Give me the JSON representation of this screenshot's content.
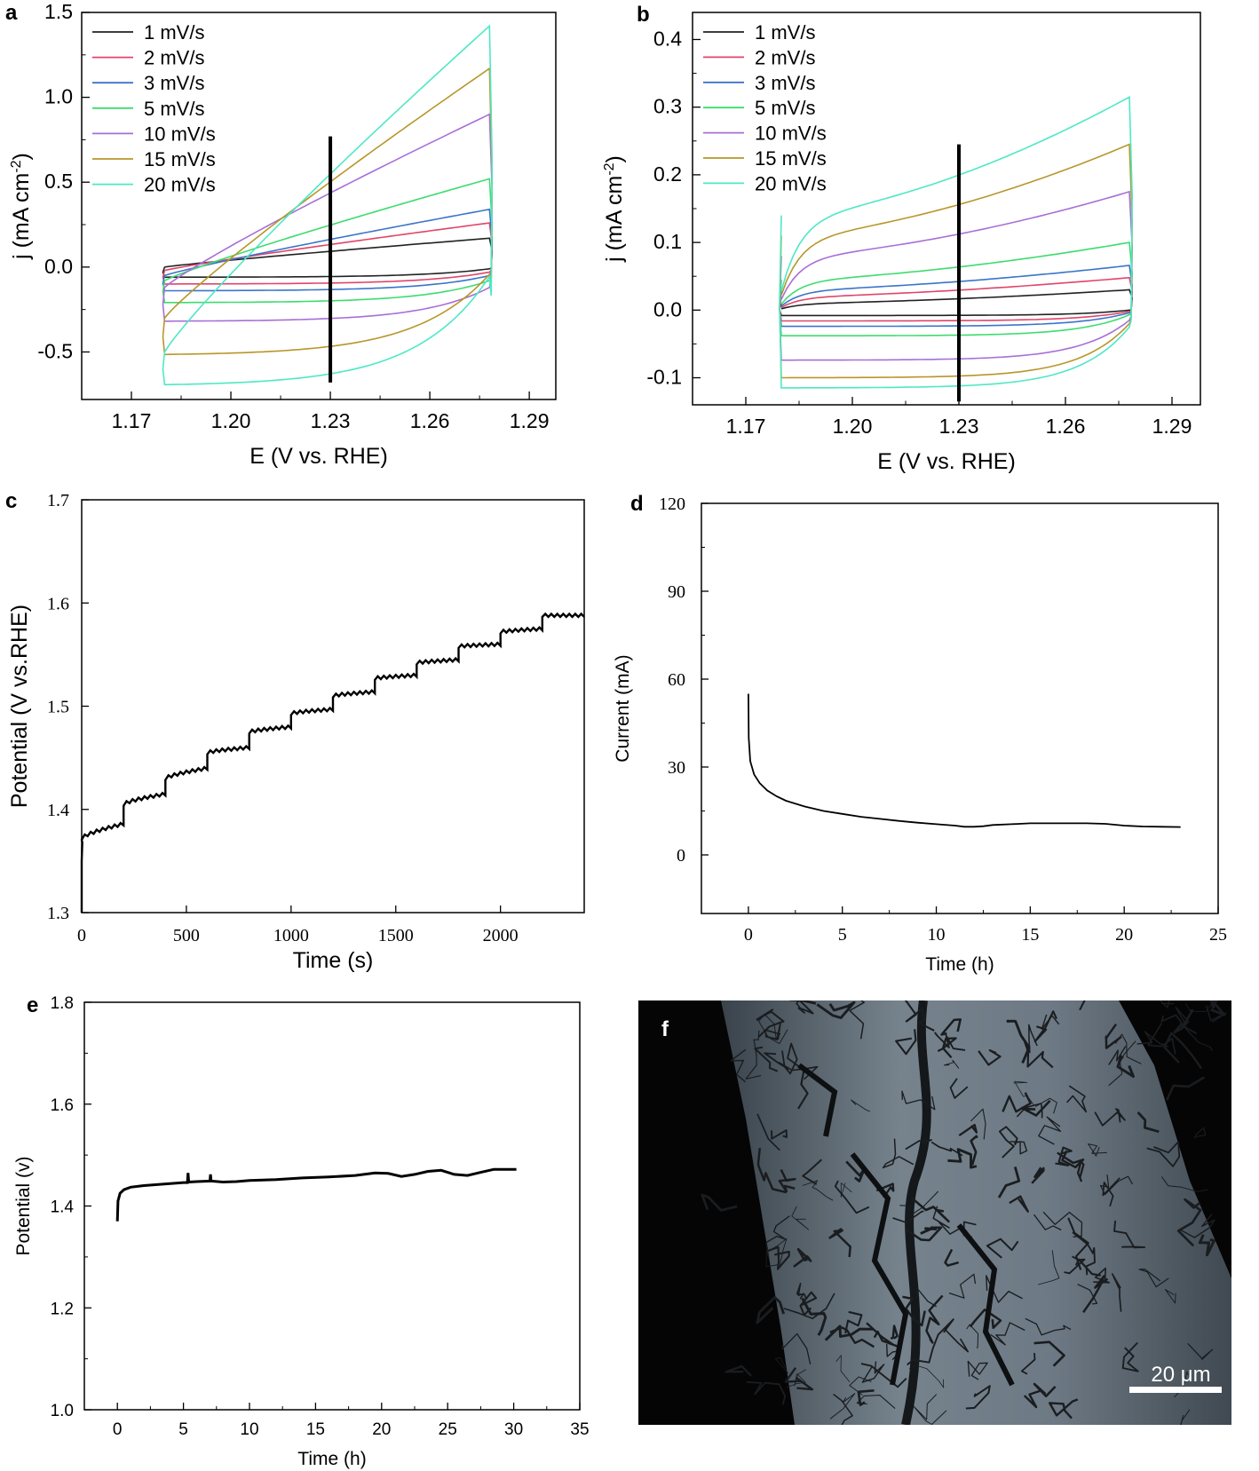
{
  "chart_data": [
    {
      "panel": "a",
      "type": "line",
      "xlabel": "E (V vs. RHE)",
      "ylabel_main": "j (mA cm",
      "ylabel_sup": "-2",
      "ylabel_end": ")",
      "xlim": [
        1.155,
        1.298
      ],
      "ylim": [
        -0.78,
        1.5
      ],
      "xticks": [
        1.17,
        1.2,
        1.23,
        1.26,
        1.29
      ],
      "xtick_labels": [
        "1.17",
        "1.20",
        "1.23",
        "1.26",
        "1.29"
      ],
      "yticks": [
        -0.5,
        0.0,
        0.5,
        1.0,
        1.5
      ],
      "ytick_labels": [
        "-0.5",
        "0.0",
        "0.5",
        "1.0",
        "1.5"
      ],
      "legend_position": "top-left",
      "marker_line": {
        "x": 1.23,
        "y": [
          -0.68,
          0.77
        ]
      },
      "series": [
        {
          "name": "1 mV/s",
          "color": "#222222",
          "top_start": 0.0,
          "top_end": 0.17,
          "bottom_start": -0.06,
          "bottom_end": -0.02,
          "peak": 0.22
        },
        {
          "name": "2 mV/s",
          "color": "#e0456a",
          "top_start": -0.02,
          "top_end": 0.26,
          "bottom_start": -0.1,
          "bottom_end": -0.06,
          "peak": 0.3
        },
        {
          "name": "3 mV/s",
          "color": "#3b74c9",
          "top_start": -0.05,
          "top_end": 0.34,
          "bottom_start": -0.14,
          "bottom_end": -0.1,
          "peak": 0.4
        },
        {
          "name": "5 mV/s",
          "color": "#3ddc6e",
          "top_start": -0.08,
          "top_end": 0.52,
          "bottom_start": -0.21,
          "bottom_end": -0.16,
          "peak": 0.56
        },
        {
          "name": "10 mV/s",
          "color": "#a86fd6",
          "top_start": -0.12,
          "top_end": 0.9,
          "bottom_start": -0.32,
          "bottom_end": -0.24,
          "peak": 0.93
        },
        {
          "name": "15 mV/s",
          "color": "#b8962a",
          "top_start": -0.3,
          "top_end": 1.17,
          "bottom_start": -0.52,
          "bottom_end": -0.42,
          "peak": 1.18
        },
        {
          "name": "20 mV/s",
          "color": "#4ee8c5",
          "top_start": -0.5,
          "top_end": 1.42,
          "bottom_start": -0.7,
          "bottom_end": -0.56,
          "peak": 1.42
        }
      ]
    },
    {
      "panel": "b",
      "type": "line",
      "xlabel": "E (V vs. RHE)",
      "ylabel_main": "j (mA cm",
      "ylabel_sup": "-2",
      "ylabel_end": ")",
      "xlim": [
        1.155,
        1.298
      ],
      "ylim": [
        -0.14,
        0.44
      ],
      "xticks": [
        1.17,
        1.2,
        1.23,
        1.26,
        1.29
      ],
      "xtick_labels": [
        "1.17",
        "1.20",
        "1.23",
        "1.26",
        "1.29"
      ],
      "yticks": [
        -0.1,
        0.0,
        0.1,
        0.2,
        0.3,
        0.4
      ],
      "ytick_labels": [
        "-0.1",
        "0.0",
        "0.1",
        "0.2",
        "0.3",
        "0.4"
      ],
      "legend_position": "top-left",
      "marker_line": {
        "x": 1.23,
        "y": [
          -0.135,
          0.245
        ]
      },
      "series": [
        {
          "name": "1 mV/s",
          "color": "#222222",
          "top_start": 0.01,
          "top_end": 0.03,
          "bottom_start": -0.008,
          "bottom_end": 0.0
        },
        {
          "name": "2 mV/s",
          "color": "#e0456a",
          "top_start": 0.02,
          "top_end": 0.048,
          "bottom_start": -0.016,
          "bottom_end": -0.004
        },
        {
          "name": "3 mV/s",
          "color": "#3b74c9",
          "top_start": 0.03,
          "top_end": 0.066,
          "bottom_start": -0.024,
          "bottom_end": -0.008
        },
        {
          "name": "5 mV/s",
          "color": "#3ddc6e",
          "top_start": 0.045,
          "top_end": 0.1,
          "bottom_start": -0.038,
          "bottom_end": -0.014
        },
        {
          "name": "10 mV/s",
          "color": "#a86fd6",
          "top_start": 0.08,
          "top_end": 0.175,
          "bottom_start": -0.074,
          "bottom_end": -0.03
        },
        {
          "name": "15 mV/s",
          "color": "#b8962a",
          "top_start": 0.11,
          "top_end": 0.245,
          "bottom_start": -0.1,
          "bottom_end": -0.04
        },
        {
          "name": "20 mV/s",
          "color": "#4ee8c5",
          "top_start": 0.14,
          "top_end": 0.315,
          "bottom_start": -0.115,
          "bottom_end": -0.05
        }
      ]
    },
    {
      "panel": "c",
      "type": "line",
      "xlabel": "Time (s)",
      "ylabel": "Potential (V vs.RHE)",
      "xlim": [
        0,
        2400
      ],
      "ylim": [
        1.3,
        1.7
      ],
      "xticks": [
        0,
        500,
        1000,
        1500,
        2000
      ],
      "xtick_labels": [
        "0",
        "500",
        "1000",
        "1500",
        "2000"
      ],
      "yticks": [
        1.3,
        1.4,
        1.5,
        1.6,
        1.7
      ],
      "ytick_labels": [
        "1.3",
        "1.4",
        "1.5",
        "1.6",
        "1.7"
      ],
      "series": [
        {
          "name": "",
          "color": "#000000",
          "step_starts": [
            0,
            200,
            400,
            600,
            800,
            1000,
            1200,
            1400,
            1600,
            1800,
            2000,
            2200
          ],
          "step_begin_values": [
            1.372,
            1.405,
            1.43,
            1.455,
            1.475,
            1.493,
            1.51,
            1.527,
            1.542,
            1.558,
            1.572,
            1.588
          ],
          "step_end_values": [
            1.386,
            1.415,
            1.44,
            1.46,
            1.48,
            1.497,
            1.514,
            1.53,
            1.545,
            1.56,
            1.575,
            1.588
          ]
        }
      ]
    },
    {
      "panel": "d",
      "type": "line",
      "xlabel": "Time (h)",
      "ylabel": "Current (mA)",
      "xlim": [
        -2.5,
        25
      ],
      "ylim": [
        -20,
        120
      ],
      "xticks": [
        0,
        5,
        10,
        15,
        20,
        25
      ],
      "xtick_labels": [
        "0",
        "5",
        "10",
        "15",
        "20",
        "25"
      ],
      "yticks": [
        0,
        30,
        60,
        90,
        120
      ],
      "ytick_labels": [
        "0",
        "30",
        "60",
        "90",
        "120"
      ],
      "series": [
        {
          "name": "",
          "color": "#000000",
          "x": [
            0,
            0.02,
            0.1,
            0.3,
            0.6,
            1,
            1.5,
            2,
            3,
            4,
            5,
            6,
            7,
            8,
            9,
            10,
            11,
            11.5,
            12,
            12.5,
            13,
            14,
            15,
            16,
            17,
            18,
            19,
            20,
            21,
            22,
            23
          ],
          "y": [
            55,
            40,
            32,
            27.5,
            24.5,
            22,
            20,
            18.5,
            16.5,
            15,
            14,
            13,
            12.3,
            11.6,
            11,
            10.5,
            10,
            9.6,
            9.6,
            9.8,
            10.2,
            10.5,
            10.8,
            10.8,
            10.8,
            10.8,
            10.6,
            10,
            9.7,
            9.6,
            9.5
          ]
        }
      ]
    },
    {
      "panel": "e",
      "type": "line",
      "xlabel": "Time (h)",
      "ylabel": "Potential (v)",
      "xlim": [
        -2.5,
        35
      ],
      "ylim": [
        1.0,
        1.8
      ],
      "xticks": [
        0,
        5,
        10,
        15,
        20,
        25,
        30,
        35
      ],
      "xtick_labels": [
        "0",
        "5",
        "10",
        "15",
        "20",
        "25",
        "30",
        "35"
      ],
      "yticks": [
        1.0,
        1.2,
        1.4,
        1.6,
        1.8
      ],
      "ytick_labels": [
        "1.0",
        "1.2",
        "1.4",
        "1.6",
        "1.8"
      ],
      "series": [
        {
          "name": "",
          "color": "#000000",
          "x": [
            0,
            0.05,
            0.2,
            0.5,
            1,
            2,
            3,
            4,
            5,
            5.3,
            5.35,
            5.4,
            6,
            7,
            7.05,
            7.1,
            8,
            9,
            10,
            12,
            14,
            16,
            18,
            19.5,
            20.5,
            21.5,
            22.5,
            23.5,
            24.5,
            25.5,
            26.5,
            27.5,
            28.5,
            29.5,
            30.2
          ],
          "y": [
            1.37,
            1.41,
            1.425,
            1.432,
            1.437,
            1.44,
            1.442,
            1.444,
            1.446,
            1.446,
            1.465,
            1.447,
            1.448,
            1.449,
            1.462,
            1.449,
            1.447,
            1.448,
            1.45,
            1.452,
            1.455,
            1.457,
            1.46,
            1.465,
            1.464,
            1.458,
            1.462,
            1.468,
            1.47,
            1.462,
            1.46,
            1.466,
            1.472,
            1.472,
            1.472
          ]
        }
      ]
    }
  ],
  "panel_labels": {
    "a": "a",
    "b": "b",
    "c": "c",
    "d": "d",
    "e": "e",
    "f": "f"
  },
  "micrograph": {
    "scale_bar_label": "20 μm",
    "background": "#050505",
    "surface_color": "#6a7680",
    "crack_color": "#1a1d20"
  }
}
